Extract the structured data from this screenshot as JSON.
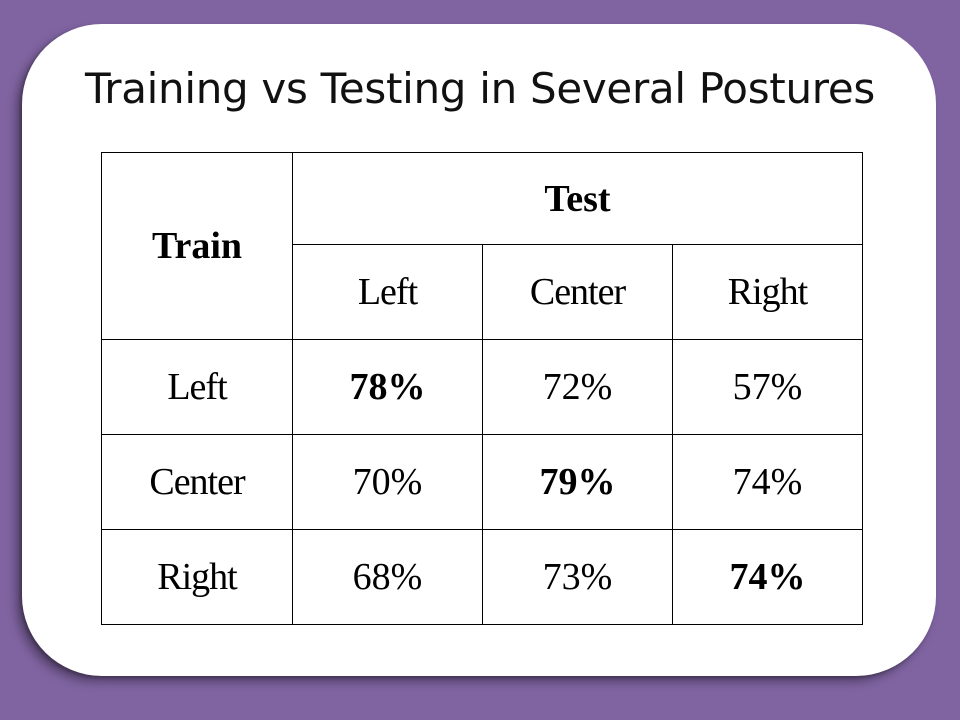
{
  "slide": {
    "title": "Training vs Testing in Several Postures"
  },
  "table": {
    "corner_header": "Train",
    "group_header": "Test",
    "test_columns": [
      "Left",
      "Center",
      "Right"
    ],
    "rows": [
      {
        "train": "Left",
        "values": [
          "78%",
          "72%",
          "57%"
        ],
        "bold_index": 0
      },
      {
        "train": "Center",
        "values": [
          "70%",
          "79%",
          "74%"
        ],
        "bold_index": 1
      },
      {
        "train": "Right",
        "values": [
          "68%",
          "73%",
          "74%"
        ],
        "bold_index": 2
      }
    ]
  },
  "colors": {
    "background": "#8064a2",
    "card": "#ffffff",
    "text": "#000000"
  }
}
